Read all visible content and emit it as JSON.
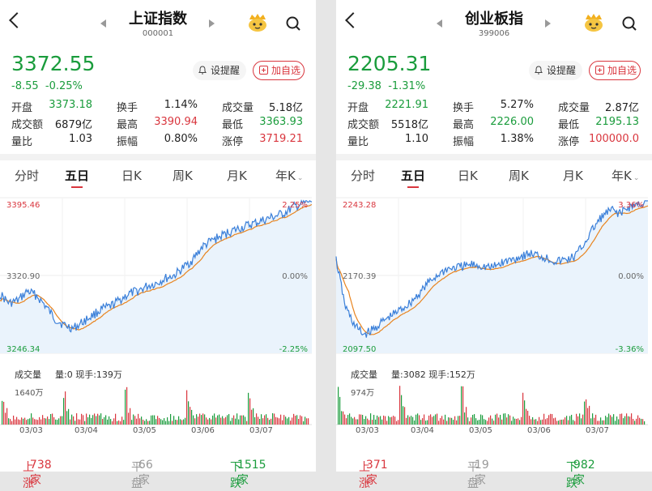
{
  "panels": [
    {
      "title": "上证指数",
      "code": "000001",
      "price": "3372.55",
      "change": "-8.55",
      "change_pct": "-0.25%",
      "remind_label": "设提醒",
      "add_fav_label": "加自选",
      "stats": [
        [
          {
            "label": "开盘",
            "value": "3373.18",
            "color": "green"
          },
          {
            "label": "换手",
            "value": "1.14%",
            "color": "dark"
          },
          {
            "label": "成交量",
            "value": "5.18亿",
            "color": "dark"
          }
        ],
        [
          {
            "label": "成交额",
            "value": "6879亿",
            "color": "dark"
          },
          {
            "label": "最高",
            "value": "3390.94",
            "color": "red"
          },
          {
            "label": "最低",
            "value": "3363.93",
            "color": "green"
          }
        ],
        [
          {
            "label": "量比",
            "value": "1.03",
            "color": "dark"
          },
          {
            "label": "振幅",
            "value": "0.80%",
            "color": "dark"
          },
          {
            "label": "涨停",
            "value": "3719.21",
            "color": "red"
          }
        ]
      ],
      "tabs": [
        "分时",
        "五日",
        "日K",
        "周K",
        "月K",
        "年K"
      ],
      "active_tab": 1,
      "chart_labels": {
        "top": "3395.46",
        "mid": "3320.90",
        "bottom": "3246.34",
        "top_pct": "2.25%",
        "mid_pct": "0.00%",
        "bottom_pct": "-2.25%"
      },
      "vol_title": "成交量",
      "vol_info": "量:0 现手:139万",
      "vol_max": "1640万",
      "dates": [
        "03/03",
        "03/04",
        "03/05",
        "03/06",
        "03/07"
      ],
      "up_label": "上涨",
      "up_count": "738家",
      "flat_label": "平盘",
      "flat_count": "66家",
      "down_label": "下跌",
      "down_count": "1515家"
    },
    {
      "title": "创业板指",
      "code": "399006",
      "price": "2205.31",
      "change": "-29.38",
      "change_pct": "-1.31%",
      "remind_label": "设提醒",
      "add_fav_label": "加自选",
      "stats": [
        [
          {
            "label": "开盘",
            "value": "2221.91",
            "color": "green"
          },
          {
            "label": "换手",
            "value": "5.27%",
            "color": "dark"
          },
          {
            "label": "成交量",
            "value": "2.87亿",
            "color": "dark"
          }
        ],
        [
          {
            "label": "成交额",
            "value": "5518亿",
            "color": "dark"
          },
          {
            "label": "最高",
            "value": "2226.00",
            "color": "green"
          },
          {
            "label": "最低",
            "value": "2195.13",
            "color": "green"
          }
        ],
        [
          {
            "label": "量比",
            "value": "1.10",
            "color": "dark"
          },
          {
            "label": "振幅",
            "value": "1.38%",
            "color": "dark"
          },
          {
            "label": "涨停",
            "value": "100000.0",
            "color": "red"
          }
        ]
      ],
      "tabs": [
        "分时",
        "五日",
        "日K",
        "周K",
        "月K",
        "年K"
      ],
      "active_tab": 1,
      "chart_labels": {
        "top": "2243.28",
        "mid": "2170.39",
        "bottom": "2097.50",
        "top_pct": "3.36%",
        "mid_pct": "0.00%",
        "bottom_pct": "-3.36%"
      },
      "vol_title": "成交量",
      "vol_info": "量:3082 现手:152万",
      "vol_max": "974万",
      "dates": [
        "03/03",
        "03/04",
        "03/05",
        "03/06",
        "03/07"
      ],
      "up_label": "上涨",
      "up_count": "371家",
      "flat_label": "平盘",
      "flat_count": "19家",
      "down_label": "下跌",
      "down_count": "982家"
    }
  ],
  "colors": {
    "up": "#d9363e",
    "down": "#1a9c3c",
    "price_line": "#3a7fd9",
    "avg_line": "#e8841f",
    "fill": "#eaf3fc"
  },
  "icons": {
    "back": "chevron-left-icon",
    "mascot": "mascot-icon",
    "search": "search-icon",
    "bell": "bell-icon",
    "plus": "plus-icon"
  }
}
